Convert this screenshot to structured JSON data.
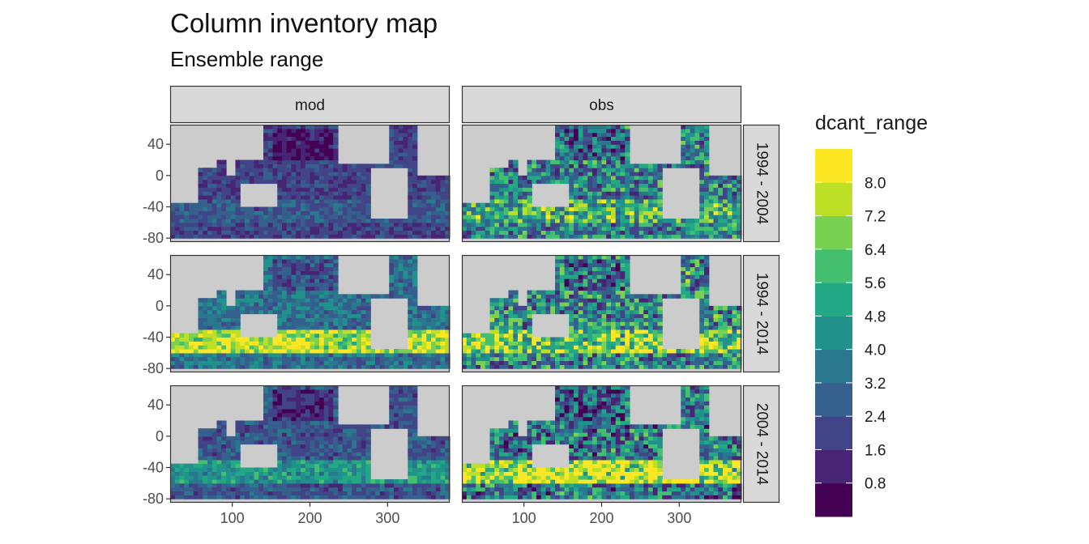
{
  "title": "Column inventory map",
  "subtitle": "Ensemble range",
  "chart_data": {
    "type": "heatmap",
    "description_fields_only_as_printed": true,
    "columns": [
      "mod",
      "obs"
    ],
    "rows": [
      "1994 - 2004",
      "1994 - 2014",
      "2004 - 2014"
    ],
    "x_ticks": [
      100,
      200,
      300
    ],
    "y_ticks": [
      40,
      0,
      -40,
      -80
    ],
    "xlim": [
      20,
      380
    ],
    "ylim": [
      -85,
      65
    ],
    "legend": {
      "title": "dcant_range",
      "position": "right",
      "breaks": [
        0.8,
        1.6,
        2.4,
        3.2,
        4.0,
        4.8,
        5.6,
        6.4,
        7.2,
        8.0
      ],
      "break_labels": [
        "0.8",
        "1.6",
        "2.4",
        "3.2",
        "4.0",
        "4.8",
        "5.6",
        "6.4",
        "7.2",
        "8.0"
      ],
      "colors": [
        "#440154",
        "#482475",
        "#414487",
        "#355f8d",
        "#2a788e",
        "#21918c",
        "#22a884",
        "#44bf70",
        "#7ad151",
        "#bddf26",
        "#fde725"
      ]
    },
    "land_color": "#cccccc",
    "grid": false,
    "panels": [
      {
        "column": "mod",
        "row": "1994 - 2004",
        "level": 0.22,
        "variability": 0.1,
        "hot_southern": 0.1
      },
      {
        "column": "obs",
        "row": "1994 - 2004",
        "level": 0.45,
        "variability": 0.3,
        "hot_southern": 0.2
      },
      {
        "column": "mod",
        "row": "1994 - 2014",
        "level": 0.38,
        "variability": 0.14,
        "hot_southern": 0.6
      },
      {
        "column": "obs",
        "row": "1994 - 2014",
        "level": 0.48,
        "variability": 0.34,
        "hot_southern": 0.35
      },
      {
        "column": "mod",
        "row": "2004 - 2014",
        "level": 0.28,
        "variability": 0.12,
        "hot_southern": 0.3
      },
      {
        "column": "obs",
        "row": "2004 - 2014",
        "level": 0.4,
        "variability": 0.34,
        "hot_southern": 0.65
      }
    ]
  }
}
